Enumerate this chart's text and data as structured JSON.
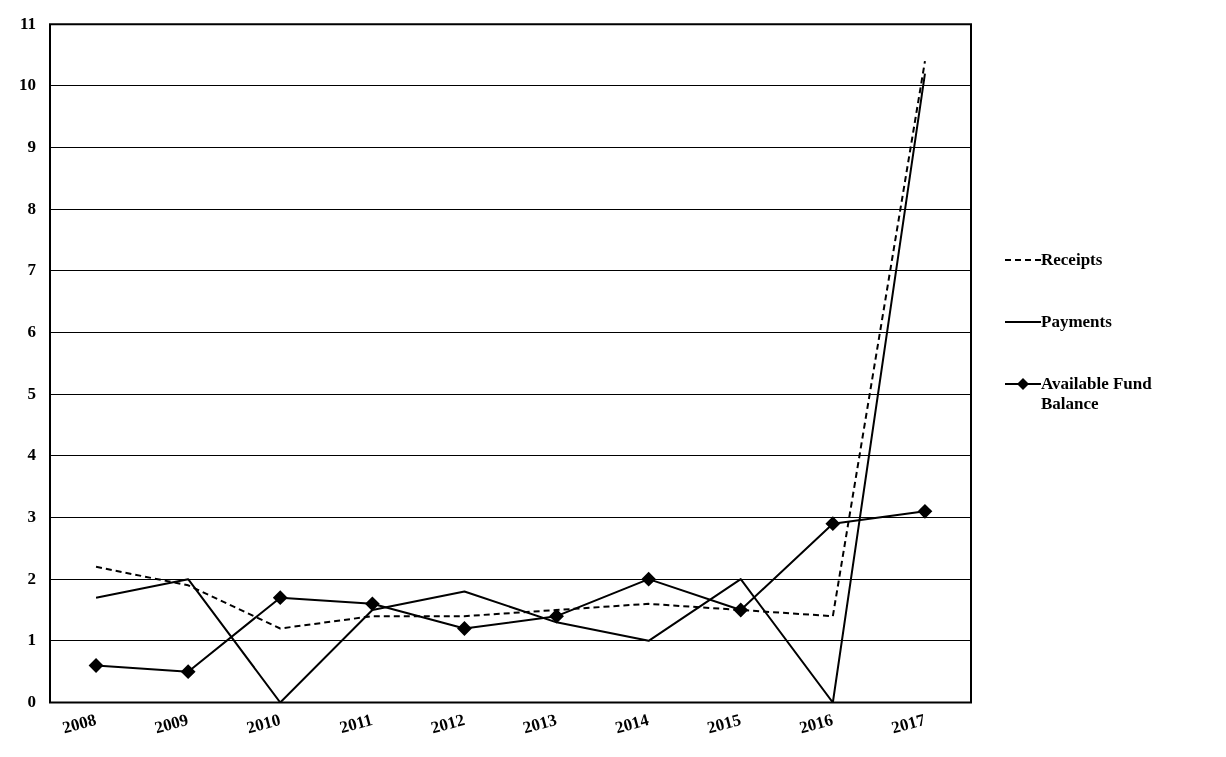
{
  "chart_data": {
    "type": "line",
    "categories": [
      "2008",
      "2009",
      "2010",
      "2011",
      "2012",
      "2013",
      "2014",
      "2015",
      "2016",
      "2017"
    ],
    "series": [
      {
        "name": "Receipts",
        "color": "#000000",
        "line_style": "dashed",
        "marker": "none",
        "values": [
          2.2,
          1.9,
          1.2,
          1.4,
          1.4,
          1.5,
          1.6,
          1.5,
          1.4,
          10.4
        ]
      },
      {
        "name": "Payments",
        "color": "#000000",
        "line_style": "solid",
        "marker": "none",
        "values": [
          1.7,
          2.0,
          0,
          1.5,
          1.8,
          1.3,
          1.0,
          2.0,
          0,
          10.2
        ]
      },
      {
        "name": "Available Fund Balance",
        "color": "#000000",
        "line_style": "solid",
        "marker": "diamond",
        "values": [
          0.6,
          0.5,
          1.7,
          1.6,
          1.2,
          1.4,
          2.0,
          1.5,
          2.9,
          3.1
        ]
      }
    ],
    "ylim": [
      0,
      11
    ],
    "yticks": [
      0,
      1,
      2,
      3,
      4,
      5,
      6,
      7,
      8,
      9,
      10,
      11
    ],
    "grid": "y",
    "legend": "right"
  }
}
